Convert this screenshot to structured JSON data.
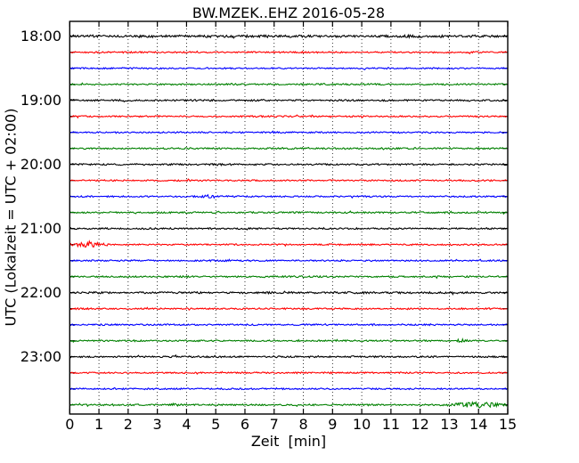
{
  "chart_data": {
    "type": "line",
    "variant": "helicorder-dayplot-seismogram",
    "title": "BW.MZEK..EHZ 2016-05-28",
    "xlabel": "Zeit  [min]",
    "ylabel": "UTC (Lokalzeit = UTC + 02:00)",
    "xlim": [
      0,
      15
    ],
    "minutes_per_line": 15,
    "x_ticks": [
      "0",
      "1",
      "2",
      "3",
      "4",
      "5",
      "6",
      "7",
      "8",
      "9",
      "10",
      "11",
      "12",
      "13",
      "14",
      "15"
    ],
    "y_tick_labels": [
      "18:00",
      "19:00",
      "20:00",
      "21:00",
      "22:00",
      "23:00"
    ],
    "y_label_every_n_traces": 4,
    "grid": "vertical-dotted-every-minute",
    "legend": "none",
    "colors": {
      "black": "#000000",
      "red": "#ff0000",
      "blue": "#0000ff",
      "green": "#008000",
      "frame": "#000000",
      "background": "#ffffff"
    },
    "traces": [
      {
        "start": "18:00",
        "color": "#000000",
        "noise_amp": 1.5,
        "events": []
      },
      {
        "start": "18:15",
        "color": "#ff0000",
        "noise_amp": 0.9,
        "events": []
      },
      {
        "start": "18:30",
        "color": "#0000ff",
        "noise_amp": 0.9,
        "events": []
      },
      {
        "start": "18:45",
        "color": "#008000",
        "noise_amp": 0.95,
        "events": []
      },
      {
        "start": "19:00",
        "color": "#000000",
        "noise_amp": 1.0,
        "events": []
      },
      {
        "start": "19:15",
        "color": "#ff0000",
        "noise_amp": 0.9,
        "events": []
      },
      {
        "start": "19:30",
        "color": "#0000ff",
        "noise_amp": 0.9,
        "events": []
      },
      {
        "start": "19:45",
        "color": "#008000",
        "noise_amp": 0.95,
        "events": []
      },
      {
        "start": "20:00",
        "color": "#000000",
        "noise_amp": 1.0,
        "events": []
      },
      {
        "start": "20:15",
        "color": "#ff0000",
        "noise_amp": 0.9,
        "events": []
      },
      {
        "start": "20:30",
        "color": "#0000ff",
        "noise_amp": 0.9,
        "events": [
          {
            "t": 4.8,
            "width": 0.45,
            "amp": 1.3
          }
        ]
      },
      {
        "start": "20:45",
        "color": "#008000",
        "noise_amp": 0.95,
        "events": []
      },
      {
        "start": "21:00",
        "color": "#000000",
        "noise_amp": 1.0,
        "events": []
      },
      {
        "start": "21:15",
        "color": "#ff0000",
        "noise_amp": 0.9,
        "events": [
          {
            "t": 0.65,
            "width": 0.8,
            "amp": 2.0
          }
        ]
      },
      {
        "start": "21:30",
        "color": "#0000ff",
        "noise_amp": 0.9,
        "events": []
      },
      {
        "start": "21:45",
        "color": "#008000",
        "noise_amp": 0.95,
        "events": []
      },
      {
        "start": "22:00",
        "color": "#000000",
        "noise_amp": 1.1,
        "events": []
      },
      {
        "start": "22:15",
        "color": "#ff0000",
        "noise_amp": 0.9,
        "events": []
      },
      {
        "start": "22:30",
        "color": "#0000ff",
        "noise_amp": 0.9,
        "events": []
      },
      {
        "start": "22:45",
        "color": "#008000",
        "noise_amp": 0.95,
        "events": [
          {
            "t": 13.4,
            "width": 0.25,
            "amp": 1.1
          }
        ]
      },
      {
        "start": "23:00",
        "color": "#000000",
        "noise_amp": 1.0,
        "events": []
      },
      {
        "start": "23:15",
        "color": "#ff0000",
        "noise_amp": 0.9,
        "events": []
      },
      {
        "start": "23:30",
        "color": "#0000ff",
        "noise_amp": 0.9,
        "events": []
      },
      {
        "start": "23:45",
        "color": "#008000",
        "noise_amp": 0.95,
        "events": [
          {
            "t": 3.65,
            "width": 0.25,
            "amp": 1.4
          },
          {
            "t": 13.9,
            "width": 1.1,
            "amp": 2.6
          }
        ]
      }
    ]
  }
}
